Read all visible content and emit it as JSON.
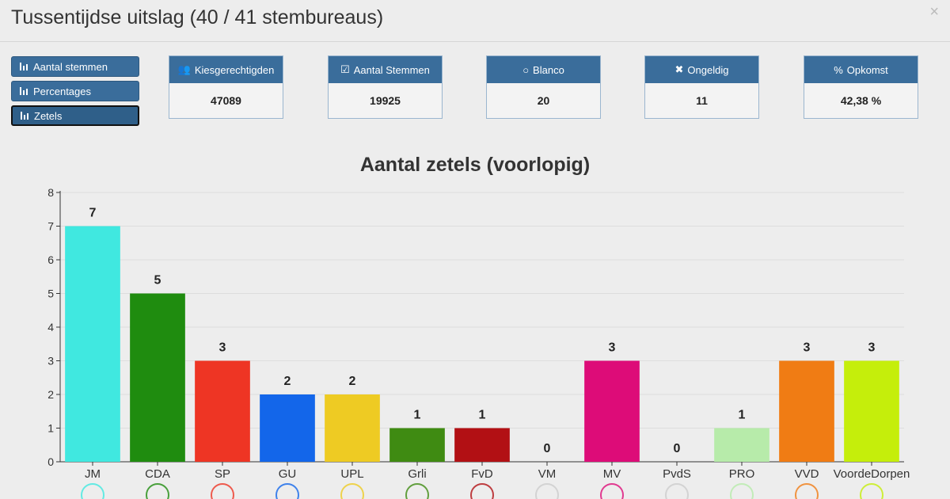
{
  "window": {
    "title": "Tussentijdse uitslag (40 / 41 stembureaus)",
    "close_symbol": "×"
  },
  "view_buttons": [
    {
      "label": "Aantal stemmen",
      "icon": "bar-chart-icon"
    },
    {
      "label": "Percentages",
      "icon": "bar-chart-icon"
    },
    {
      "label": "Zetels",
      "icon": "bar-chart-icon",
      "active": true
    }
  ],
  "stats": [
    {
      "label": "Kiesgerechtigden",
      "icon": "users-icon",
      "glyph": "👥",
      "value": "47089"
    },
    {
      "label": "Aantal Stemmen",
      "icon": "check-square-icon",
      "glyph": "☑",
      "value": "19925"
    },
    {
      "label": "Blanco",
      "icon": "circle-icon",
      "glyph": "○",
      "value": "20"
    },
    {
      "label": "Ongeldig",
      "icon": "times-icon",
      "glyph": "✖",
      "value": "11"
    },
    {
      "label": "Opkomst",
      "icon": "percent-icon",
      "glyph": "%",
      "value": "42,38 %"
    }
  ],
  "chart_data": {
    "type": "bar",
    "title": "Aantal zetels (voorlopig)",
    "categories": [
      "JM",
      "CDA",
      "SP",
      "GU",
      "UPL",
      "Grli",
      "FvD",
      "VM",
      "MV",
      "PvdS",
      "PRO",
      "VVD",
      "VoordeDorpen"
    ],
    "values": [
      7,
      5,
      3,
      2,
      2,
      1,
      1,
      0,
      3,
      0,
      1,
      3,
      3
    ],
    "colors": [
      "#40e8e0",
      "#1f8c0f",
      "#ee3524",
      "#1366ea",
      "#eecb23",
      "#3f8b12",
      "#b21014",
      "#cccccc",
      "#dd0c78",
      "#cccccc",
      "#b7ebaa",
      "#f07c14",
      "#c5ee0b"
    ],
    "ylim": [
      0,
      8
    ],
    "yticks": [
      0,
      1,
      2,
      3,
      4,
      5,
      6,
      7,
      8
    ],
    "grid": true,
    "xlabel": "",
    "ylabel": ""
  }
}
